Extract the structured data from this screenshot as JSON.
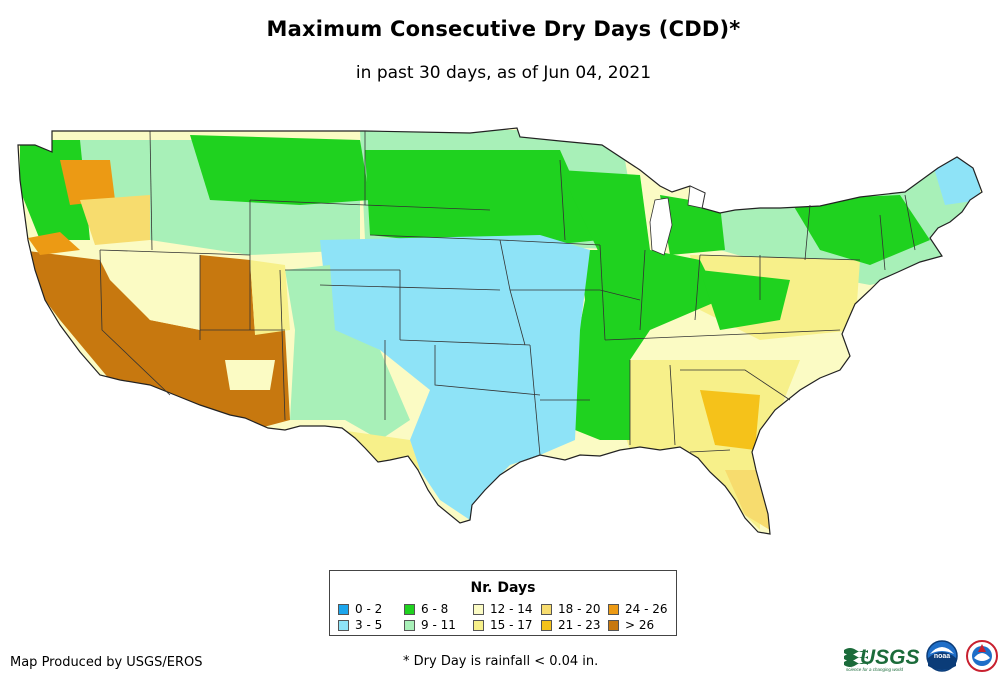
{
  "title": "Maximum Consecutive Dry Days (CDD)*",
  "subtitle": "in past 30 days, as of Jun 04, 2021",
  "legend": {
    "title": "Nr. Days",
    "items": [
      {
        "label": "0 - 2",
        "color": "#1ca6ed"
      },
      {
        "label": "3 - 5",
        "color": "#8ee3f7"
      },
      {
        "label": "6 - 8",
        "color": "#1fd21f"
      },
      {
        "label": "9 - 11",
        "color": "#a8f0b8"
      },
      {
        "label": "12 - 14",
        "color": "#fbfbc4"
      },
      {
        "label": "15 - 17",
        "color": "#f7f08a"
      },
      {
        "label": "18 - 20",
        "color": "#f7dc6e"
      },
      {
        "label": "21 - 23",
        "color": "#f5c21a"
      },
      {
        "label": "24 - 26",
        "color": "#ec9a14"
      },
      {
        "label": "> 26",
        "color": "#c7780f"
      }
    ]
  },
  "footer": {
    "credit": "Map Produced by USGS/EROS",
    "footnote": "* Dry Day is rainfall < 0.04 in.",
    "usgs_logo_text": "USGS",
    "usgs_tagline": "science for a changing world",
    "noaa_logo_text": "noaa"
  }
}
